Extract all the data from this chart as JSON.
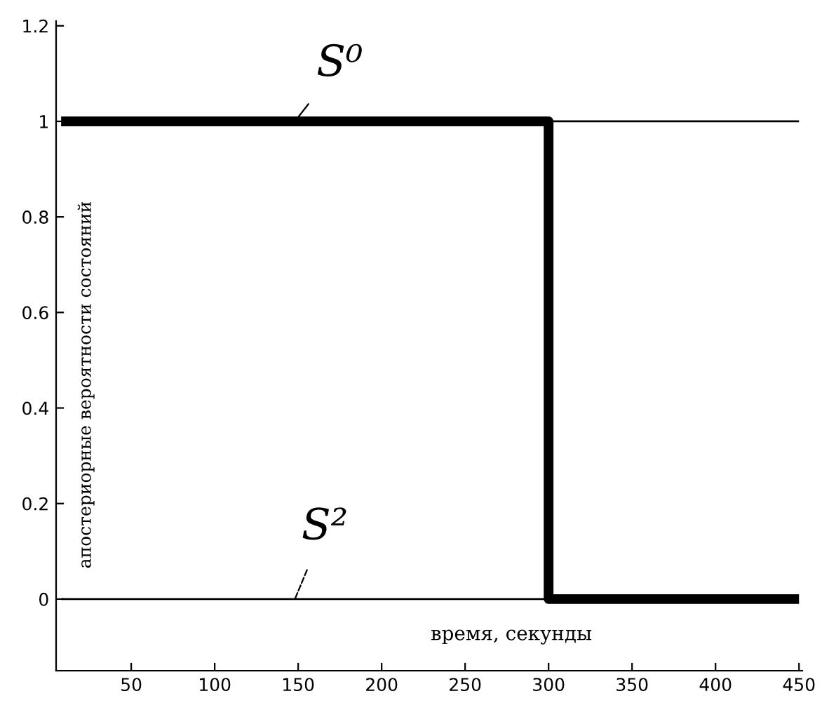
{
  "chart_data": {
    "type": "line",
    "xlabel": "время, секунды",
    "ylabel": "апостериорные вероятности состояний",
    "xlim": [
      5,
      452
    ],
    "ylim": [
      -0.15,
      1.21
    ],
    "xticks": [
      50,
      100,
      150,
      200,
      250,
      300,
      350,
      400,
      450
    ],
    "yticks": [
      0,
      0.2,
      0.4,
      0.6,
      0.8,
      1,
      1.2
    ],
    "grid": false,
    "legend": false,
    "marker": "none",
    "line_style": "solid",
    "series": [
      {
        "name": "S⁰",
        "color": "#000000",
        "x": [
          8,
          300,
          300,
          450
        ],
        "values": [
          1,
          1,
          0,
          0
        ]
      },
      {
        "name": "S²",
        "color": "#000000",
        "x": [
          8,
          300,
          300,
          450
        ],
        "values": [
          0,
          0,
          1,
          1
        ]
      }
    ]
  }
}
